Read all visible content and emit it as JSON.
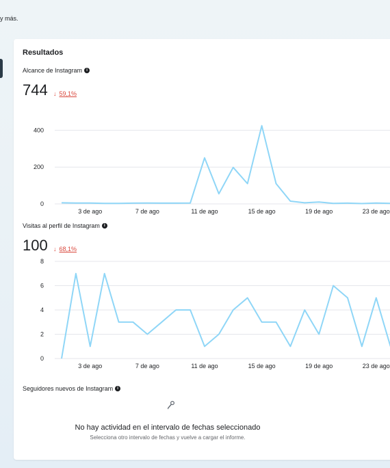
{
  "page": {
    "top_text": "y más."
  },
  "results": {
    "title": "Resultados",
    "reach": {
      "label": "Alcance de Instagram",
      "value": "744",
      "change": "59,1%"
    },
    "profile_visits": {
      "label": "Visitas al perfil de Instagram",
      "value": "100",
      "change": "68,1%"
    },
    "followers": {
      "label": "Seguidores nuevos de Instagram",
      "empty_title": "No hay actividad en el intervalo de fechas seleccionado",
      "empty_subtitle": "Selecciona otro intervalo de fechas y vuelve a cargar el informe."
    }
  },
  "colors": {
    "line": "#8fd6f7",
    "negative": "#d9473c",
    "grid": "#e4e6eb"
  },
  "chart_data": [
    {
      "type": "line",
      "series_label": "Alcance de Instagram",
      "x_ticks": [
        "3 de ago",
        "7 de ago",
        "11 de ago",
        "15 de ago",
        "19 de ago",
        "23 de ago"
      ],
      "y_ticks": [
        0,
        200,
        400
      ],
      "ylim": [
        0,
        420
      ],
      "x_start_day": 1,
      "values": [
        6,
        5,
        5,
        3,
        3,
        4,
        5,
        4,
        4,
        5,
        250,
        55,
        198,
        110,
        425,
        110,
        15,
        6,
        10,
        3,
        4,
        2,
        5,
        3,
        3
      ]
    },
    {
      "type": "line",
      "series_label": "Visitas al perfil de Instagram",
      "x_ticks": [
        "3 de ago",
        "7 de ago",
        "11 de ago",
        "15 de ago",
        "19 de ago",
        "23 de ago"
      ],
      "y_ticks": [
        0,
        2,
        4,
        6,
        8
      ],
      "ylim": [
        0,
        8
      ],
      "x_start_day": 1,
      "values": [
        0,
        7,
        1,
        7,
        3,
        3,
        2,
        3,
        4,
        4,
        1,
        2,
        4,
        5,
        3,
        3,
        1,
        4,
        2,
        6,
        5,
        1,
        5,
        1
      ]
    }
  ]
}
